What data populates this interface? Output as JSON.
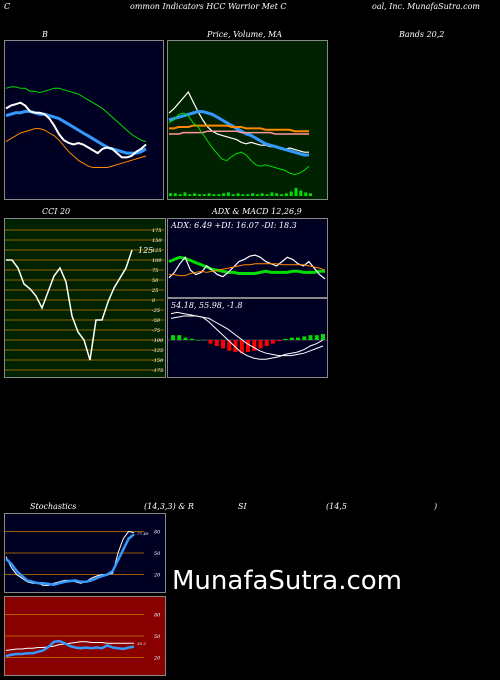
{
  "header": {
    "left": "C",
    "middle": "ommon  Indicators HCC Warrior Met C",
    "right": "oal, Inc. MunafaSutra.com"
  },
  "watermark": "MunafaSutra.com",
  "colors": {
    "bollinger_bg": "#000022",
    "ma_bg": "#002200",
    "cci_bg": "#002200",
    "adx_bg": "#000022",
    "stoch_bg": "#000022",
    "rsi_bg": "#880000",
    "grid_orange": "#c87800",
    "line_white": "#ffffff",
    "line_blue": "#3399ff",
    "line_green": "#00dd00",
    "line_orange": "#ff8800",
    "line_red": "#ff0000"
  },
  "chart_data": [
    {
      "type": "line",
      "title": "B",
      "panel": "bollinger",
      "x": [
        1,
        2,
        3,
        4,
        5,
        6,
        7,
        8,
        9,
        10,
        11,
        12,
        13,
        14,
        15,
        16,
        17,
        18,
        19,
        20,
        21,
        22,
        23,
        24,
        25,
        26,
        27,
        28,
        29,
        30
      ],
      "series": [
        {
          "role": "upper",
          "color": "green",
          "values": [
            72,
            73,
            73,
            72,
            72,
            70,
            70,
            69,
            70,
            71,
            72,
            72,
            71,
            70,
            69,
            68,
            66,
            64,
            62,
            60,
            58,
            55,
            52,
            49,
            46,
            43,
            40,
            38,
            36,
            35
          ]
        },
        {
          "role": "middle",
          "color": "blue",
          "values": [
            53,
            54,
            55,
            55,
            56,
            56,
            55,
            54,
            54,
            53,
            52,
            51,
            49,
            47,
            45,
            43,
            41,
            39,
            37,
            35,
            33,
            31,
            30,
            29,
            28,
            27,
            27,
            27,
            28,
            30
          ]
        },
        {
          "role": "lower",
          "color": "orange",
          "values": [
            35,
            37,
            39,
            41,
            42,
            43,
            44,
            44,
            43,
            41,
            39,
            36,
            32,
            28,
            25,
            22,
            20,
            18,
            17,
            17,
            17,
            17,
            18,
            19,
            20,
            21,
            22,
            23,
            24,
            25
          ]
        },
        {
          "role": "price",
          "color": "white",
          "values": [
            58,
            60,
            61,
            62,
            60,
            56,
            55,
            55,
            54,
            51,
            46,
            40,
            36,
            34,
            33,
            34,
            33,
            31,
            29,
            27,
            30,
            31,
            30,
            27,
            24,
            24,
            25,
            28,
            30,
            33
          ]
        }
      ]
    },
    {
      "type": "line",
      "title": "Price,  Volume,  MA",
      "panel": "moving_averages",
      "series": [
        {
          "color": "white",
          "values": [
            55,
            58,
            62,
            66,
            70,
            63,
            56,
            50,
            45,
            42,
            40,
            39,
            38,
            37,
            36,
            34,
            33,
            34,
            33,
            32,
            32,
            31,
            31,
            30,
            29,
            30,
            29,
            28,
            27,
            27
          ]
        },
        {
          "color": "blue",
          "values": [
            50,
            51,
            52,
            53,
            54,
            55,
            56,
            56,
            55,
            54,
            52,
            50,
            48,
            46,
            44,
            42,
            40,
            39,
            37,
            35,
            33,
            32,
            31,
            30,
            29,
            28,
            27,
            26,
            25,
            25
          ]
        },
        {
          "color": "orange",
          "values": [
            44,
            44,
            45,
            45,
            45,
            46,
            46,
            46,
            46,
            46,
            46,
            46,
            46,
            45,
            45,
            45,
            44,
            44,
            44,
            44,
            43,
            43,
            43,
            43,
            43,
            43,
            42,
            42,
            42,
            42
          ]
        },
        {
          "color": "pink",
          "values": [
            40,
            40,
            40,
            41,
            41,
            41,
            41,
            41,
            42,
            42,
            42,
            42,
            42,
            42,
            42,
            41,
            41,
            41,
            41,
            41,
            41,
            41,
            40,
            40,
            40,
            40,
            40,
            40,
            40,
            40
          ]
        },
        {
          "color": "green",
          "values": [
            48,
            50,
            54,
            55,
            53,
            48,
            45,
            40,
            35,
            30,
            26,
            22,
            21,
            24,
            26,
            27,
            25,
            21,
            18,
            17,
            18,
            17,
            16,
            15,
            14,
            12,
            11,
            12,
            14,
            17
          ]
        }
      ],
      "volume": [
        3,
        3,
        2,
        4,
        2,
        3,
        2,
        2,
        3,
        2,
        2,
        3,
        4,
        2,
        3,
        2,
        2,
        3,
        2,
        3,
        2,
        4,
        3,
        2,
        3,
        5,
        9,
        6,
        4,
        3
      ]
    },
    {
      "type": "line",
      "title": "Bands 20,2",
      "panel": "bands_label"
    },
    {
      "type": "line",
      "title": "CCI 20",
      "panel": "cci",
      "ylim": [
        -175,
        175
      ],
      "ticks": [
        175,
        150,
        125,
        100,
        75,
        50,
        25,
        0,
        -25,
        -50,
        -75,
        -100,
        -125,
        -150,
        -175
      ],
      "tick_labels": [
        "175",
        "150",
        "125",
        "100",
        "75",
        "50",
        "25",
        "0",
        "-25",
        "-50",
        "-75",
        "-100",
        "-125",
        "-150",
        "-175"
      ],
      "last_label": "125",
      "series": [
        {
          "color": "white",
          "values": [
            100,
            100,
            80,
            40,
            28,
            10,
            -20,
            20,
            60,
            80,
            45,
            -40,
            -80,
            -100,
            -150,
            -50,
            -50,
            -5,
            30,
            55,
            80,
            125
          ]
        }
      ]
    },
    {
      "type": "line",
      "title": "ADX  & MACD 12,26,9",
      "panel": "adx",
      "text": "ADX: 6.49  +DI: 16.07 -DI: 18.3",
      "series": [
        {
          "color": "green",
          "values": [
            30,
            32,
            34,
            33,
            31,
            29,
            27,
            25,
            23,
            22,
            21,
            20,
            20,
            19,
            19,
            19,
            19,
            20,
            21,
            20,
            20,
            20,
            20,
            21,
            21,
            20,
            20,
            20,
            21,
            21
          ]
        },
        {
          "color": "white",
          "values": [
            15,
            20,
            28,
            34,
            22,
            18,
            20,
            26,
            22,
            18,
            16,
            20,
            25,
            30,
            32,
            35,
            36,
            34,
            30,
            28,
            26,
            30,
            34,
            32,
            28,
            26,
            30,
            24,
            18,
            14
          ]
        },
        {
          "color": "orange",
          "values": [
            18,
            18,
            17,
            17,
            19,
            20,
            21,
            20,
            21,
            22,
            23,
            24,
            25,
            26,
            27,
            27,
            28,
            28,
            28,
            28,
            28,
            27,
            27,
            27,
            27,
            27,
            26,
            25,
            24,
            22
          ]
        }
      ]
    },
    {
      "type": "bar",
      "title": "MACD",
      "panel": "macd",
      "text": "54.18,  55.98,  -1.8",
      "series": [
        {
          "name": "macd",
          "color": "white",
          "values": [
            22,
            23,
            22,
            21,
            20,
            19,
            15,
            10,
            5,
            0,
            -5,
            -10,
            -13,
            -15,
            -16,
            -16,
            -15,
            -14,
            -12,
            -11,
            -10,
            -8,
            -5,
            -3,
            0
          ]
        },
        {
          "name": "signal",
          "color": "white",
          "values": [
            18,
            19,
            20,
            20,
            20,
            19,
            18,
            15,
            12,
            9,
            5,
            1,
            -3,
            -6,
            -9,
            -11,
            -12,
            -13,
            -13,
            -13,
            -12,
            -11,
            -9,
            -7,
            -5
          ]
        },
        {
          "name": "histogram",
          "values": [
            4,
            4,
            2,
            1,
            0,
            0,
            -3,
            -5,
            -7,
            -9,
            -10,
            -11,
            -10,
            -9,
            -7,
            -5,
            -3,
            -1,
            1,
            2,
            2,
            3,
            4,
            4,
            5
          ]
        }
      ]
    },
    {
      "type": "line",
      "title": "Stochastics",
      "panel": "stochastics",
      "params": "(14,3,3) & R",
      "ylim": [
        0,
        100
      ],
      "ticks": [
        80,
        50,
        20
      ],
      "tick_labels": [
        "80",
        "50",
        "20"
      ],
      "last_label": "77.49",
      "series": [
        {
          "color": "white",
          "values": [
            45,
            30,
            20,
            15,
            10,
            8,
            8,
            5,
            5,
            8,
            10,
            12,
            12,
            10,
            8,
            10,
            15,
            18,
            20,
            20,
            22,
            50,
            70,
            80,
            78
          ]
        },
        {
          "color": "blue",
          "values": [
            42,
            35,
            25,
            18,
            12,
            10,
            8,
            8,
            7,
            6,
            8,
            10,
            11,
            12,
            10,
            10,
            12,
            15,
            18,
            20,
            25,
            40,
            55,
            70,
            76
          ]
        }
      ]
    },
    {
      "type": "line",
      "title": "SI",
      "panel": "rsi",
      "params": "(14,5",
      "close_paren": ")",
      "ylim": [
        0,
        100
      ],
      "ticks": [
        80,
        50,
        20
      ],
      "tick_labels": [
        "80",
        "50",
        "20"
      ],
      "last_label": "35.2",
      "series": [
        {
          "color": "white",
          "values": [
            30,
            31,
            32,
            32,
            33,
            33,
            34,
            34,
            35,
            36,
            38,
            39,
            40,
            41,
            42,
            42,
            41,
            41,
            41,
            40,
            40,
            40,
            40,
            40,
            40
          ]
        },
        {
          "color": "blue",
          "values": [
            22,
            24,
            25,
            25,
            26,
            26,
            28,
            30,
            35,
            42,
            43,
            40,
            36,
            34,
            33,
            34,
            33,
            34,
            33,
            37,
            34,
            33,
            32,
            34,
            35
          ]
        }
      ]
    }
  ]
}
